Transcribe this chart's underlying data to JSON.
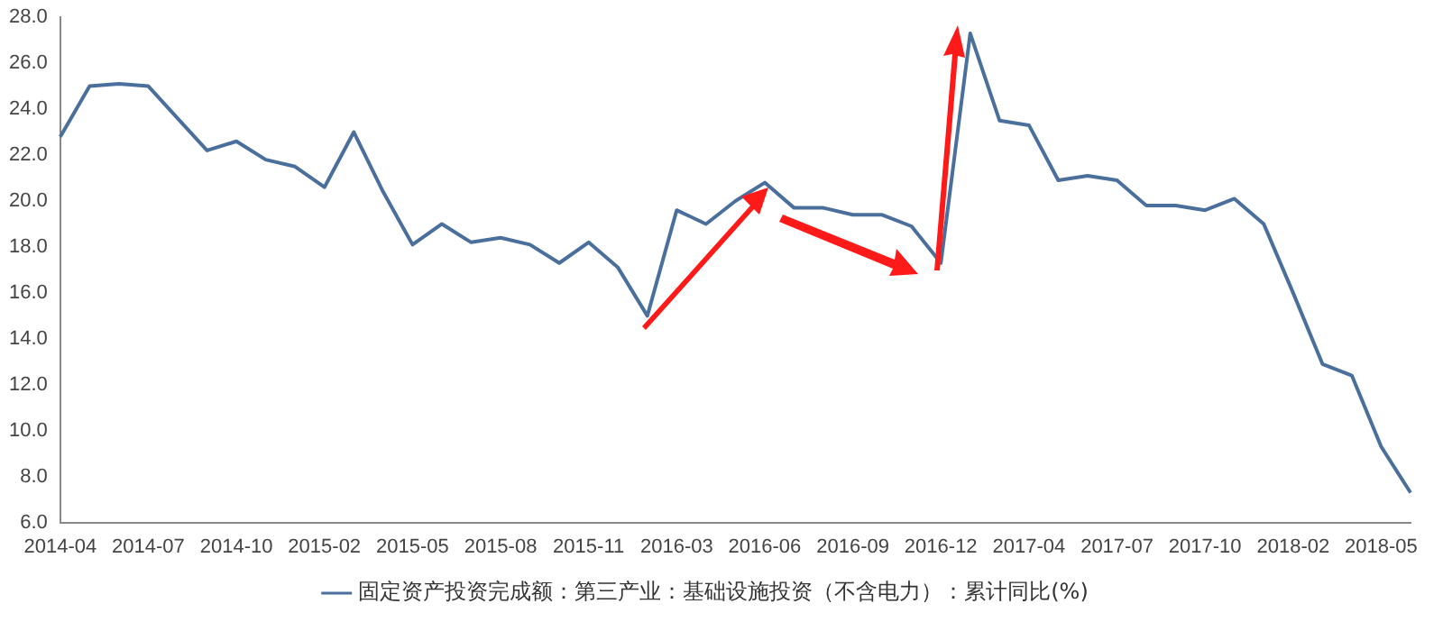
{
  "chart_data": {
    "type": "line",
    "categories": [
      "2014-04",
      null,
      null,
      "2014-07",
      null,
      null,
      "2014-10",
      null,
      null,
      "2015-02",
      null,
      null,
      "2015-05",
      null,
      null,
      "2015-08",
      null,
      null,
      "2015-11",
      null,
      null,
      "2016-03",
      null,
      null,
      "2016-06",
      null,
      null,
      "2016-09",
      null,
      null,
      "2016-12",
      null,
      null,
      "2017-04",
      null,
      null,
      "2017-07",
      null,
      null,
      "2017-10",
      null,
      null,
      "2018-02",
      null,
      null,
      "2018-05",
      null
    ],
    "series": [
      {
        "name": "固定资产投资完成额：第三产业：基础设施投资（不含电力）：累计同比(%)",
        "color": "#4a6f9c",
        "values": [
          22.8,
          25.0,
          25.1,
          25.0,
          23.6,
          22.2,
          22.6,
          21.8,
          21.5,
          20.6,
          23.0,
          20.4,
          18.1,
          19.0,
          18.2,
          18.4,
          18.1,
          17.3,
          18.2,
          17.1,
          15.0,
          19.6,
          19.0,
          20.0,
          20.8,
          19.7,
          19.7,
          19.4,
          19.4,
          18.9,
          17.3,
          27.3,
          23.5,
          23.3,
          20.9,
          21.1,
          20.9,
          19.8,
          19.8,
          19.6,
          20.1,
          19.0,
          16.0,
          12.9,
          12.4,
          9.3,
          7.3
        ]
      }
    ],
    "ylim": [
      6,
      28
    ],
    "yticks": [
      {
        "value": 6,
        "label": "6.0"
      },
      {
        "value": 8,
        "label": "8.0"
      },
      {
        "value": 10,
        "label": "10.0"
      },
      {
        "value": 12,
        "label": "12.0"
      },
      {
        "value": 14,
        "label": "14.0"
      },
      {
        "value": 16,
        "label": "16.0"
      },
      {
        "value": 18,
        "label": "18.0"
      },
      {
        "value": 20,
        "label": "20.0"
      },
      {
        "value": 22,
        "label": "22.0"
      },
      {
        "value": 24,
        "label": "24.0"
      },
      {
        "value": 26,
        "label": "26.0"
      },
      {
        "value": 28,
        "label": "28.0"
      }
    ],
    "grid": false,
    "legend": "bottom",
    "marker": "none",
    "line_style": "solid"
  }
}
